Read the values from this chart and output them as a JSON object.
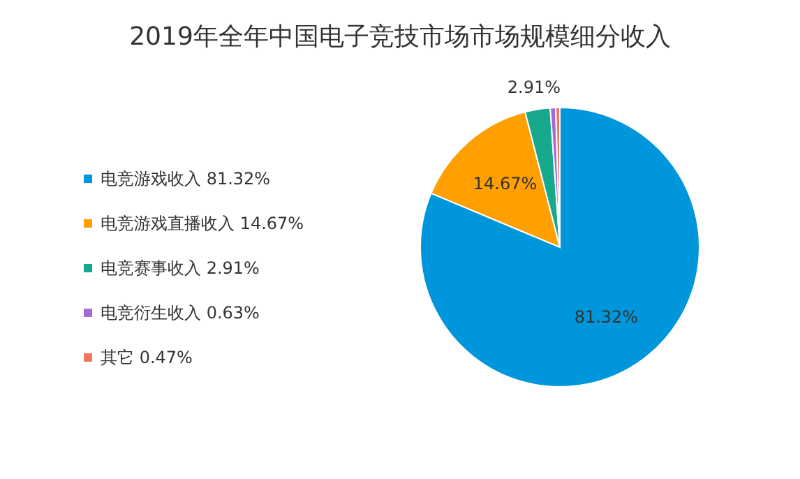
{
  "chart_data": {
    "type": "pie",
    "title": "2019年全年中国电子竞技市场市场规模细分收入",
    "categories": [
      "电竞游戏收入 81.32%",
      "电竞游戏直播收入 14.67%",
      "电竞赛事收入 2.91%",
      "电竞衍生收入 0.63%",
      "其它 0.47%"
    ],
    "values": [
      81.32,
      14.67,
      2.91,
      0.63,
      0.47
    ],
    "colors": [
      "#0096dc",
      "#ff9f00",
      "#17a98e",
      "#a36bd5",
      "#f4735b"
    ],
    "value_labels": [
      "81.32%",
      "14.67%",
      "2.91%",
      null,
      null
    ],
    "legend": "left"
  }
}
